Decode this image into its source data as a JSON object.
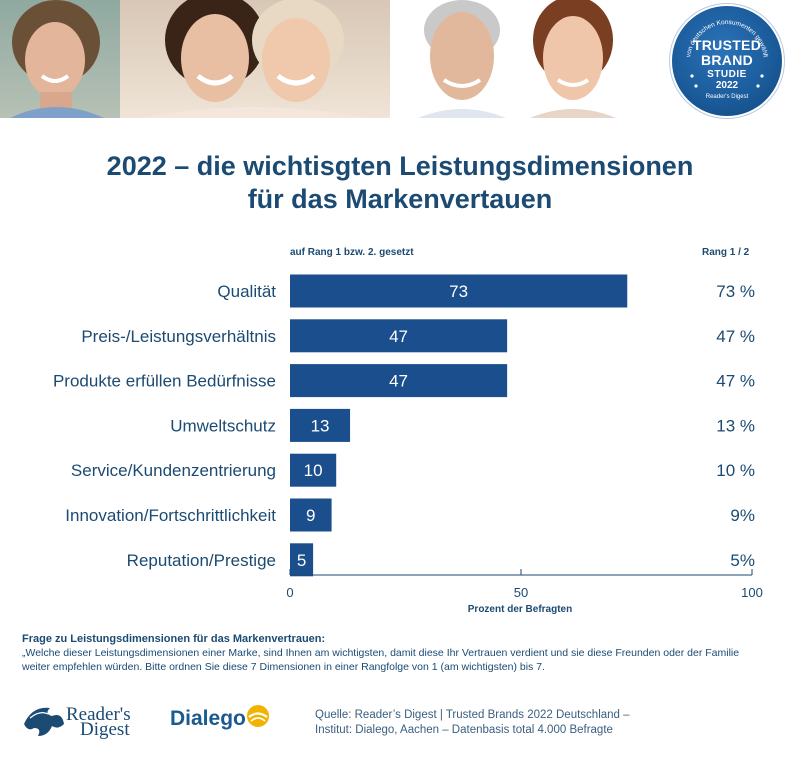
{
  "header": {
    "badge": {
      "arc_text": "von deutschen Konsumenten gewählt",
      "line1": "TRUSTED",
      "line2": "BRAND",
      "line3": "STUDIE",
      "year": "2022",
      "publisher": "Reader's Digest"
    }
  },
  "title": {
    "line1": "2022 – die wichtisgten Leistungsdimensionen",
    "line2": "für das Markenvertauen"
  },
  "chart_data": {
    "type": "bar",
    "orientation": "horizontal",
    "subtitle_left": "auf Rang 1 bzw. 2. gesetzt",
    "subtitle_right": "Rang 1 / 2",
    "categories": [
      "Qualität",
      "Preis-/Leistungsverhältnis",
      "Produkte erfüllen Bedürfnisse",
      "Umweltschutz",
      "Service/Kundenzentrierung",
      "Innovation/Fortschrittlichkeit",
      "Reputation/Prestige"
    ],
    "values": [
      73,
      47,
      47,
      13,
      10,
      9,
      5
    ],
    "right_labels": [
      "73 %",
      "47 %",
      "47 %",
      "13 %",
      "10 %",
      "9%",
      "5%"
    ],
    "xlabel": "Prozent der Befragten",
    "xlim": [
      0,
      100
    ],
    "xticks": [
      "0",
      "50",
      "100"
    ],
    "bar_color": "#1a4e8c"
  },
  "question": {
    "heading": "Frage zu Leistungsdimensionen für das Markenvertrauen:",
    "line1": "„Welche dieser Leistungsdimensionen einer Marke, sind Ihnen am wichtigsten, damit diese Ihr Vertrauen verdient und sie diese Freunden oder der Familie",
    "line2": "weiter empfehlen würden. Bitte ordnen Sie diese 7 Dimensionen in einer Rangfolge von 1 (am wichtigsten) bis 7."
  },
  "footer": {
    "readers_digest_line1": "Reader's",
    "readers_digest_line2": "Digest",
    "dialego": "Dialego",
    "source_line1": "Quelle: Reader’s Digest | Trusted Brands 2022 Deutschland –",
    "source_line2": "Institut: Dialego, Aachen – Datenbasis total 4.000 Befragte"
  },
  "colors": {
    "brand_blue": "#1b4a72",
    "bar_blue": "#1a4e8c",
    "badge_blue": "#1a5a99",
    "dialego_yellow": "#f2b200"
  }
}
